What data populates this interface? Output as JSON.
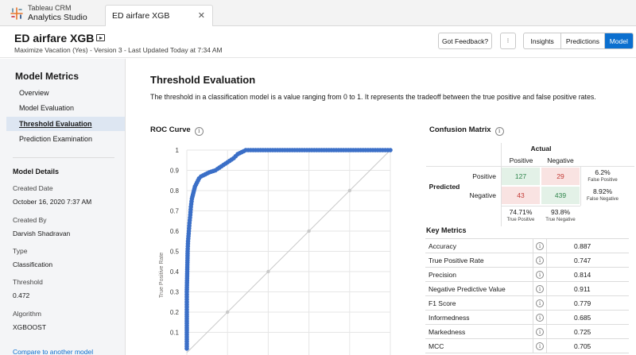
{
  "app": {
    "line1": "Tableau CRM",
    "line2": "Analytics Studio",
    "logo_icon": "tableau-logo-icon"
  },
  "tab": {
    "label": "ED airfare XGB",
    "close_icon": "close-icon"
  },
  "header": {
    "title": "ED airfare XGB",
    "subtitle": "Maximize Vacation (Yes) - Version 3 - Last Updated Today at 7:34 AM",
    "feedback_label": "Got Feedback?",
    "menu_label": "⁝",
    "views": [
      "Insights",
      "Predictions",
      "Model"
    ],
    "active_view": "Model",
    "accent": "#0b6fcf"
  },
  "sidebar": {
    "heading": "Model Metrics",
    "items": [
      "Overview",
      "Model Evaluation",
      "Threshold Evaluation",
      "Prediction Examination"
    ],
    "selected": "Threshold Evaluation",
    "details_heading": "Model Details",
    "details": [
      {
        "label": "Created Date",
        "value": "October 16, 2020 7:37 AM"
      },
      {
        "label": "Created By",
        "value": "Darvish Shadravan"
      },
      {
        "label": "Type",
        "value": "Classification"
      },
      {
        "label": "Threshold",
        "value": "0.472"
      },
      {
        "label": "Algorithm",
        "value": "XGBOOST"
      }
    ],
    "compare_link": "Compare to another model"
  },
  "main": {
    "title": "Threshold Evaluation",
    "description": "The threshold in a classification model is a value ranging from 0 to 1. It represents the tradeoff between the true positive and false positive rates.",
    "roc_title": "ROC Curve",
    "cm_title": "Confusion Matrix",
    "km_title": "Key Metrics"
  },
  "confusion_matrix": {
    "actual_label": "Actual",
    "predicted_label": "Predicted",
    "col_headers": [
      "Positive",
      "Negative"
    ],
    "row_headers": [
      "Positive",
      "Negative"
    ],
    "cells": [
      [
        "127",
        "29"
      ],
      [
        "43",
        "439"
      ]
    ],
    "row_rates": [
      {
        "value": "6.2%",
        "label": "False Positive"
      },
      {
        "value": "8.92%",
        "label": "False Negative"
      }
    ],
    "col_rates": [
      {
        "value": "74.71%",
        "label": "True Positive"
      },
      {
        "value": "93.8%",
        "label": "True Negative"
      }
    ],
    "colors": {
      "good_bg": "#e3f1e7",
      "good_fg": "#2e844a",
      "bad_bg": "#f9e3e2",
      "bad_fg": "#c23934"
    }
  },
  "key_metrics": [
    {
      "name": "Accuracy",
      "value": "0.887"
    },
    {
      "name": "True Positive Rate",
      "value": "0.747"
    },
    {
      "name": "Precision",
      "value": "0.814"
    },
    {
      "name": "Negative Predictive Value",
      "value": "0.911"
    },
    {
      "name": "F1 Score",
      "value": "0.779"
    },
    {
      "name": "Informedness",
      "value": "0.685"
    },
    {
      "name": "Markedness",
      "value": "0.725"
    },
    {
      "name": "MCC",
      "value": "0.705"
    }
  ],
  "chart_data": {
    "type": "scatter",
    "title": "ROC Curve",
    "ylabel": "True Positive Rate",
    "xlabel": "",
    "ylim": [
      0,
      1
    ],
    "xlim": [
      0,
      1
    ],
    "yticks": [
      "0.1",
      "0.2",
      "0.3",
      "0.4",
      "0.5",
      "0.6",
      "0.7",
      "0.8",
      "0.9",
      "1"
    ],
    "grid": true,
    "diagonal_reference": true,
    "color": "#3b6fc7",
    "series": [
      {
        "points": [
          [
            0.0,
            0.02
          ],
          [
            0.0,
            0.1
          ],
          [
            0.0,
            0.2
          ],
          [
            0.0,
            0.3
          ],
          [
            0.002,
            0.4
          ],
          [
            0.004,
            0.5
          ],
          [
            0.006,
            0.55
          ],
          [
            0.01,
            0.6
          ],
          [
            0.013,
            0.64
          ],
          [
            0.017,
            0.68
          ],
          [
            0.02,
            0.72
          ],
          [
            0.025,
            0.76
          ],
          [
            0.03,
            0.78
          ],
          [
            0.035,
            0.8
          ],
          [
            0.04,
            0.82
          ],
          [
            0.05,
            0.84
          ],
          [
            0.06,
            0.86
          ],
          [
            0.07,
            0.87
          ],
          [
            0.09,
            0.88
          ],
          [
            0.11,
            0.89
          ],
          [
            0.14,
            0.9
          ],
          [
            0.17,
            0.92
          ],
          [
            0.2,
            0.94
          ],
          [
            0.23,
            0.96
          ],
          [
            0.25,
            0.98
          ],
          [
            0.27,
            0.99
          ],
          [
            0.29,
            1.0
          ],
          [
            0.35,
            1.0
          ],
          [
            0.41,
            1.0
          ],
          [
            0.47,
            1.0
          ],
          [
            0.53,
            1.0
          ],
          [
            0.59,
            1.0
          ],
          [
            0.65,
            1.0
          ],
          [
            0.71,
            1.0
          ],
          [
            0.77,
            1.0
          ],
          [
            0.83,
            1.0
          ],
          [
            0.89,
            1.0
          ],
          [
            0.95,
            1.0
          ],
          [
            1.0,
            1.0
          ]
        ]
      }
    ]
  }
}
